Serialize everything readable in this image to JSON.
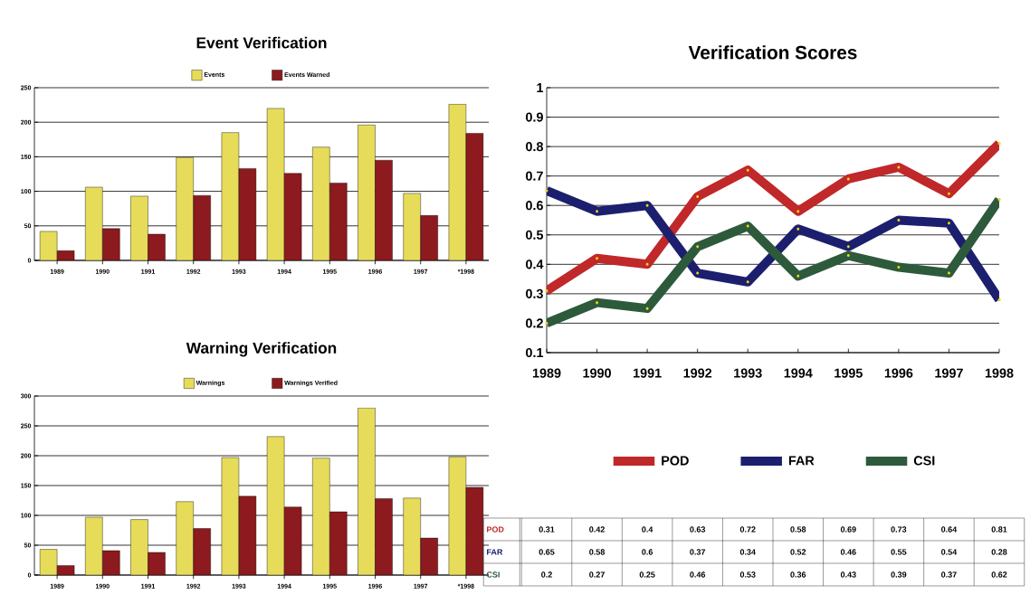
{
  "chart_data": [
    {
      "type": "bar",
      "title": "Event Verification",
      "categories": [
        "1989",
        "1990",
        "1991",
        "1992",
        "1993",
        "1994",
        "1995",
        "1996",
        "1997",
        "*1998"
      ],
      "series": [
        {
          "name": "Events",
          "color": "#e6dc5a",
          "values": [
            42,
            106,
            93,
            149,
            185,
            220,
            164,
            196,
            97,
            226
          ]
        },
        {
          "name": "Events Warned",
          "color": "#8c1a1e",
          "values": [
            14,
            46,
            38,
            94,
            133,
            126,
            112,
            145,
            65,
            184
          ]
        }
      ],
      "ylim": [
        0,
        250
      ],
      "yticks": [
        0,
        50,
        100,
        150,
        200,
        250
      ],
      "grid": "y",
      "legend": "top"
    },
    {
      "type": "bar",
      "title": "Warning Verification",
      "categories": [
        "1989",
        "1990",
        "1991",
        "1992",
        "1993",
        "1994",
        "1995",
        "1996",
        "1997",
        "*1998"
      ],
      "series": [
        {
          "name": "Warnings",
          "color": "#e6dc5a",
          "values": [
            43,
            97,
            93,
            123,
            197,
            232,
            196,
            280,
            129,
            198
          ]
        },
        {
          "name": "Warnings Verified",
          "color": "#8c1a1e",
          "values": [
            16,
            41,
            38,
            78,
            132,
            114,
            106,
            128,
            62,
            147
          ]
        }
      ],
      "ylim": [
        0,
        300
      ],
      "yticks": [
        0,
        50,
        100,
        150,
        200,
        250,
        300
      ],
      "grid": "y",
      "legend": "top"
    },
    {
      "type": "line",
      "title": "Verification Scores",
      "categories": [
        "1989",
        "1990",
        "1991",
        "1992",
        "1993",
        "1994",
        "1995",
        "1996",
        "1997",
        "1998"
      ],
      "series": [
        {
          "name": "POD",
          "color": "#c0282a",
          "values": [
            0.31,
            0.42,
            0.4,
            0.63,
            0.72,
            0.58,
            0.69,
            0.73,
            0.64,
            0.81
          ],
          "value_labels": [
            "0.31",
            "0.42",
            "0.4",
            "0.63",
            "0.72",
            "0.58",
            "0.69",
            "0.73",
            "0.64",
            "0.81"
          ]
        },
        {
          "name": "FAR",
          "color": "#1c1f6e",
          "values": [
            0.65,
            0.58,
            0.6,
            0.37,
            0.34,
            0.52,
            0.46,
            0.55,
            0.54,
            0.28
          ],
          "value_labels": [
            "0.65",
            "0.58",
            "0.6",
            "0.37",
            "0.34",
            "0.52",
            "0.46",
            "0.55",
            "0.54",
            "0.28"
          ]
        },
        {
          "name": "CSI",
          "color": "#2e5a3c",
          "values": [
            0.2,
            0.27,
            0.25,
            0.46,
            0.53,
            0.36,
            0.43,
            0.39,
            0.37,
            0.62
          ],
          "value_labels": [
            "0.2",
            "0.27",
            "0.25",
            "0.46",
            "0.53",
            "0.36",
            "0.43",
            "0.39",
            "0.37",
            "0.62"
          ]
        }
      ],
      "ylim": [
        0.1,
        1
      ],
      "yticks": [
        0.1,
        0.2,
        0.3,
        0.4,
        0.5,
        0.6,
        0.7,
        0.8,
        0.9,
        1
      ],
      "grid": "y",
      "legend": "bottom",
      "marker": "circle"
    }
  ]
}
